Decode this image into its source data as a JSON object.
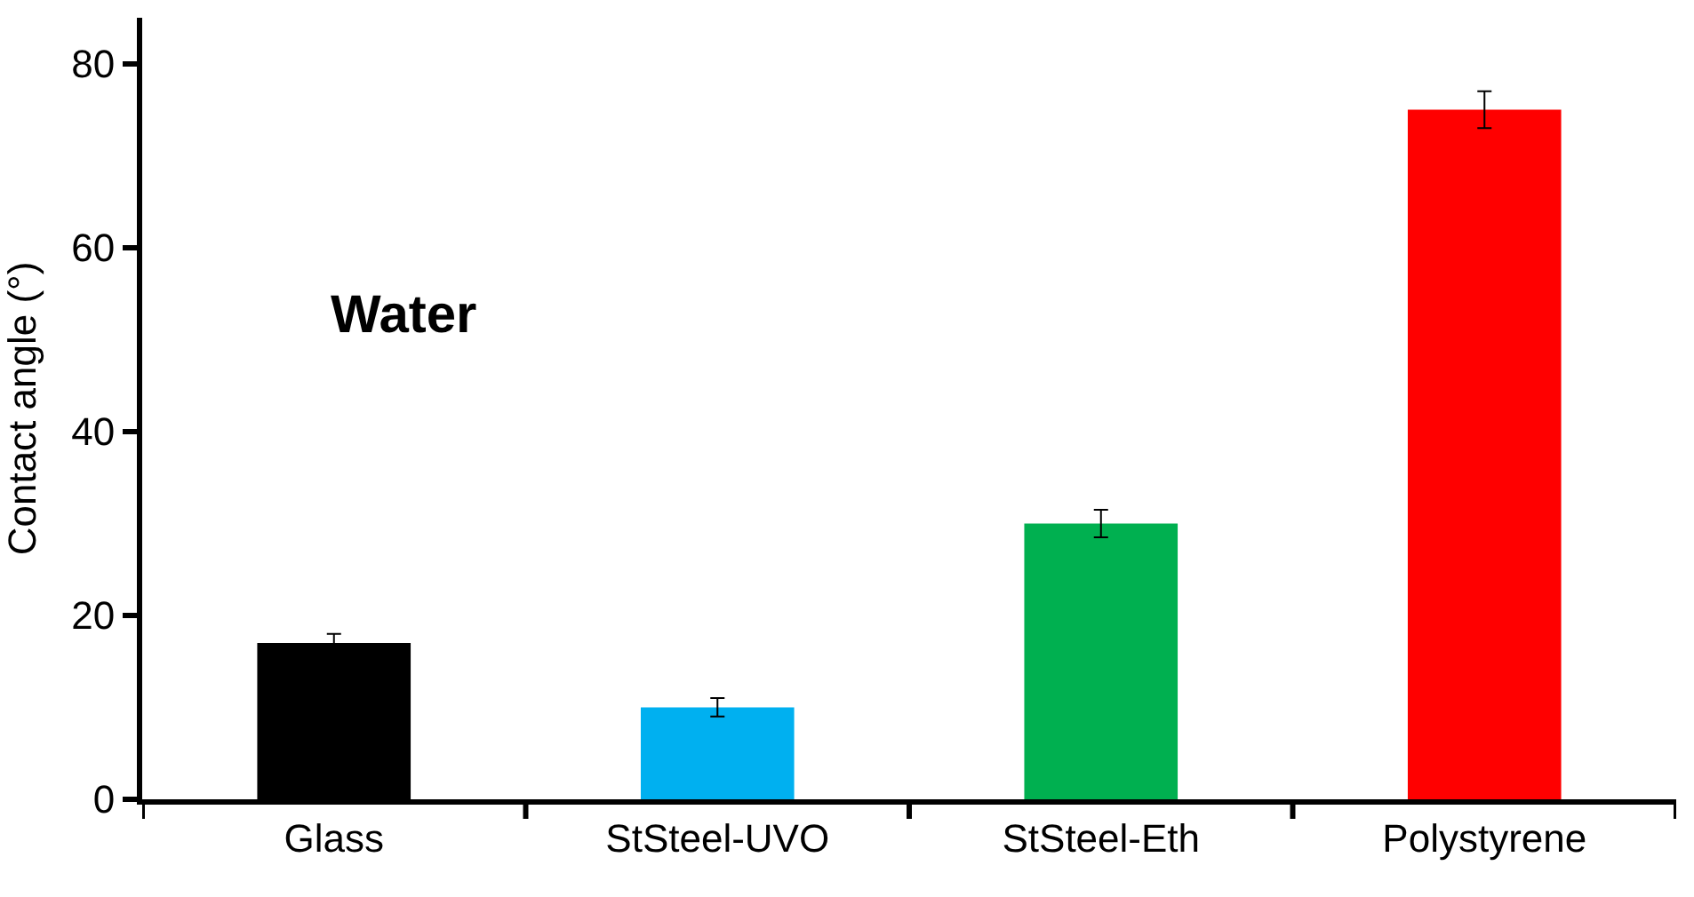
{
  "chart_data": {
    "type": "bar",
    "ylabel": "Contact angle (°)",
    "annotations": [
      "Water"
    ],
    "categories": [
      "Glass",
      "StSteel-UVO",
      "StSteel-Eth",
      "Polystyrene"
    ],
    "values": [
      17,
      10,
      30,
      75
    ],
    "colors": [
      "#000000",
      "#00b0f0",
      "#00b050",
      "#ff0000"
    ],
    "errors": [
      1,
      1,
      1.5,
      2
    ],
    "ylim": [
      0,
      85
    ],
    "yticks": [
      0,
      20,
      40,
      60,
      80
    ]
  }
}
